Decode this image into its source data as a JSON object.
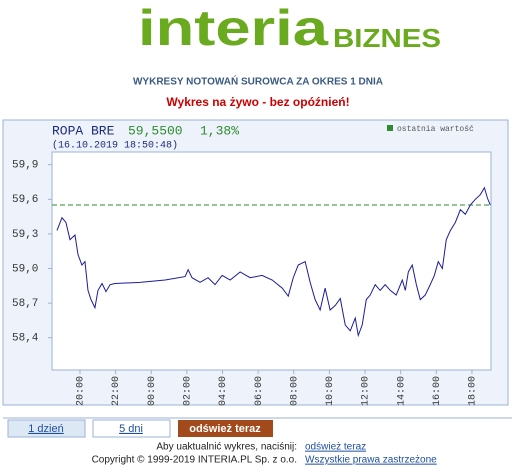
{
  "logo": {
    "name": "interia",
    "section": "BIZNES"
  },
  "heading": "WYKRESY NOTOWAŃ SUROWCA ZA OKRES 1 DNIA",
  "live_note": "Wykres na żywo - bez opóźnień!",
  "chart_data": {
    "type": "line",
    "instrument": "ROPA BRE",
    "price": "59,5500",
    "change": "1,38%",
    "timestamp": "(16.10.2019 18:50:48)",
    "xlim": [
      18.43,
      43.07
    ],
    "ylim": [
      58.12,
      60.01
    ],
    "xticks": [
      {
        "value": 20,
        "label": "20:00"
      },
      {
        "value": 22,
        "label": "22:00"
      },
      {
        "value": 24,
        "label": "00:00"
      },
      {
        "value": 26,
        "label": "02:00"
      },
      {
        "value": 28,
        "label": "04:00"
      },
      {
        "value": 30,
        "label": "06:00"
      },
      {
        "value": 32,
        "label": "08:00"
      },
      {
        "value": 34,
        "label": "10:00"
      },
      {
        "value": 36,
        "label": "12:00"
      },
      {
        "value": 38,
        "label": "14:00"
      },
      {
        "value": 40,
        "label": "16:00"
      },
      {
        "value": 42,
        "label": "18:00"
      }
    ],
    "yticks": [
      {
        "value": 58.4,
        "label": "58,4"
      },
      {
        "value": 58.7,
        "label": "58,7"
      },
      {
        "value": 59.0,
        "label": "59,0"
      },
      {
        "value": 59.3,
        "label": "59,3"
      },
      {
        "value": 59.6,
        "label": "59,6"
      },
      {
        "value": 59.9,
        "label": "59,9"
      }
    ],
    "grid": false,
    "x": [
      18.71,
      18.99,
      19.21,
      19.44,
      19.72,
      19.89,
      20.11,
      20.28,
      20.45,
      20.62,
      20.84,
      21.01,
      21.24,
      21.46,
      21.69,
      21.97,
      23.37,
      24.78,
      25.9,
      26.07,
      26.29,
      26.74,
      27.19,
      27.58,
      27.98,
      28.43,
      28.99,
      29.55,
      30.22,
      30.79,
      31.35,
      31.69,
      31.97,
      32.25,
      32.64,
      32.92,
      33.2,
      33.48,
      33.76,
      34.04,
      34.33,
      34.61,
      34.89,
      35.17,
      35.45,
      35.62,
      35.84,
      36.07,
      36.29,
      36.57,
      36.85,
      37.13,
      37.42,
      37.75,
      38.09,
      38.26,
      38.43,
      38.65,
      38.88,
      39.1,
      39.38,
      39.66,
      39.89,
      40.11,
      40.34,
      40.56,
      40.79,
      41.07,
      41.35,
      41.63,
      41.91,
      42.19,
      42.47,
      42.7,
      42.87,
      43.03
    ],
    "series": [
      {
        "color": "#1c1c9c",
        "values": [
          59.33,
          59.44,
          59.4,
          59.25,
          59.29,
          59.12,
          59.03,
          59.06,
          58.81,
          58.73,
          58.66,
          58.81,
          58.87,
          58.8,
          58.86,
          58.87,
          58.88,
          58.9,
          58.93,
          58.99,
          58.92,
          58.88,
          58.92,
          58.86,
          58.94,
          58.9,
          58.97,
          58.92,
          58.94,
          58.9,
          58.83,
          58.76,
          58.92,
          59.03,
          59.06,
          58.88,
          58.73,
          58.64,
          58.83,
          58.64,
          58.68,
          58.74,
          58.51,
          58.46,
          58.57,
          58.42,
          58.51,
          58.73,
          58.77,
          58.86,
          58.81,
          58.86,
          58.81,
          58.77,
          58.9,
          58.81,
          58.97,
          59.03,
          58.86,
          58.73,
          58.77,
          58.86,
          58.94,
          59.06,
          59.0,
          59.25,
          59.33,
          59.4,
          59.51,
          59.47,
          59.55,
          59.6,
          59.64,
          59.7,
          59.61,
          59.55
        ]
      }
    ],
    "reference": {
      "name": "ostatnia wartość",
      "value": 59.55,
      "color": "#2e8b2e"
    }
  },
  "tabs": [
    "1 dzień",
    "5 dni",
    "odśwież teraz"
  ],
  "footer": {
    "refresh_text": "Aby uaktualnić wykres, naciśnij:",
    "refresh_link": "odśwież teraz",
    "copyright": "Copyright © 1999-2019 INTERIA.PL Sp. z o.o.",
    "rights_link": "Wszystkie prawa zastrzeżone"
  }
}
